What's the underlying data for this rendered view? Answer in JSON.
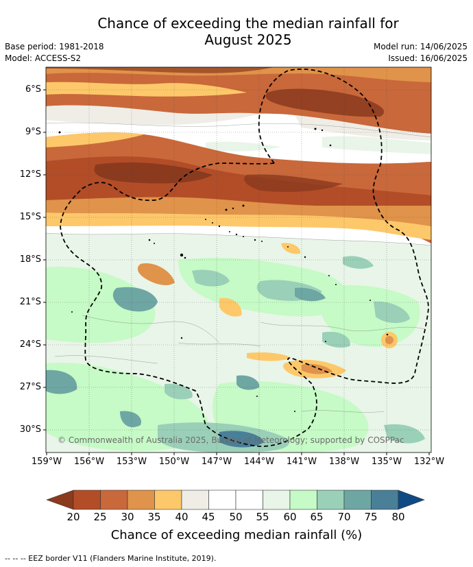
{
  "header": {
    "title": "Chance of exceeding the median rainfall for\nAugust 2025",
    "base_period": "Base period: 1981-2018",
    "model": "Model: ACCESS-S2",
    "model_run": "Model run: 14/06/2025",
    "issued": "Issued: 16/06/2025"
  },
  "map": {
    "lat_labels": [
      "6°S",
      "9°S",
      "12°S",
      "15°S",
      "18°S",
      "21°S",
      "24°S",
      "27°S",
      "30°S"
    ],
    "lon_labels": [
      "159°W",
      "156°W",
      "153°W",
      "150°W",
      "147°W",
      "144°W",
      "141°W",
      "138°W",
      "135°W",
      "132°W"
    ],
    "copyright": "© Commonwealth of Australia 2025, Bureau of Meteorology; supported by COSPPac",
    "eez_line_style": "dashed black"
  },
  "colorbar": {
    "ticks": [
      "20",
      "25",
      "30",
      "35",
      "40",
      "45",
      "50",
      "55",
      "60",
      "65",
      "70",
      "75",
      "80"
    ],
    "label": "Chance of exceeding median rainfall (%)",
    "colors": [
      "#8b3a1e",
      "#b24d28",
      "#c9683a",
      "#e0934a",
      "#fdc86a",
      "#efede6",
      "#ffffff",
      "#ffffff",
      "#e8f5e8",
      "#c6fac6",
      "#9ad0b8",
      "#6ea6a4",
      "#4a7f98",
      "#0f4a84"
    ]
  },
  "legend": {
    "note": "-- -- -- EEZ border V11 (Flanders Marine Institute, 2019)."
  }
}
